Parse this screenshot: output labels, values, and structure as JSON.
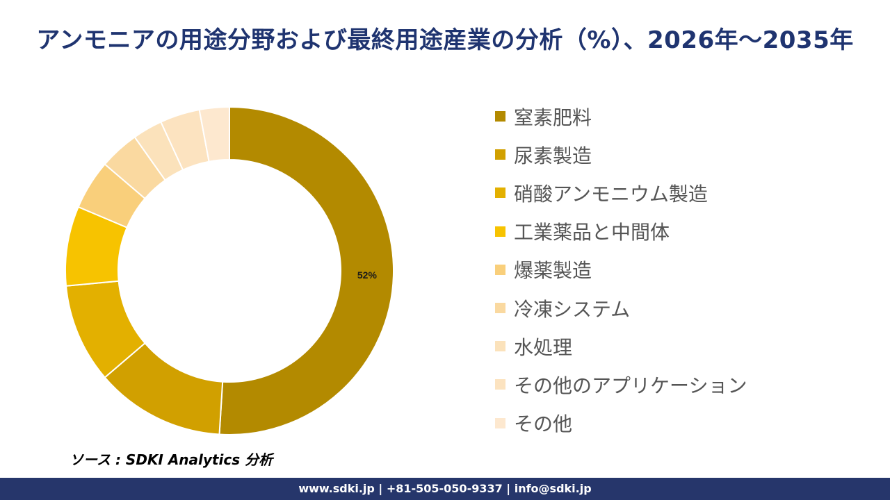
{
  "title": "アンモニアの用途分野および最終用途産業の分析（%）、2026年～2035年",
  "chart_data": {
    "type": "pie",
    "donut": true,
    "categories": [
      "窒素肥料",
      "尿素製造",
      "硝酸アンモニウム製造",
      "工業薬品と中間体",
      "爆薬製造",
      "冷凍システム",
      "水処理",
      "その他のアプリケーション",
      "その他"
    ],
    "values": [
      52,
      13,
      10,
      8,
      5,
      4,
      3,
      4,
      3
    ],
    "data_labels": [
      "52%",
      "",
      "",
      "",
      "",
      "",
      "",
      "",
      ""
    ],
    "colors": [
      "#b38a00",
      "#d1a000",
      "#e3b000",
      "#f7c300",
      "#f9cf7b",
      "#fad9a0",
      "#fbe2bb",
      "#fce3c0",
      "#fde8cf"
    ],
    "legend_position": "right"
  },
  "source": "ソース : SDKI Analytics 分析",
  "footer": "www.sdki.jp | +81-505-050-9337 | info@sdki.jp"
}
